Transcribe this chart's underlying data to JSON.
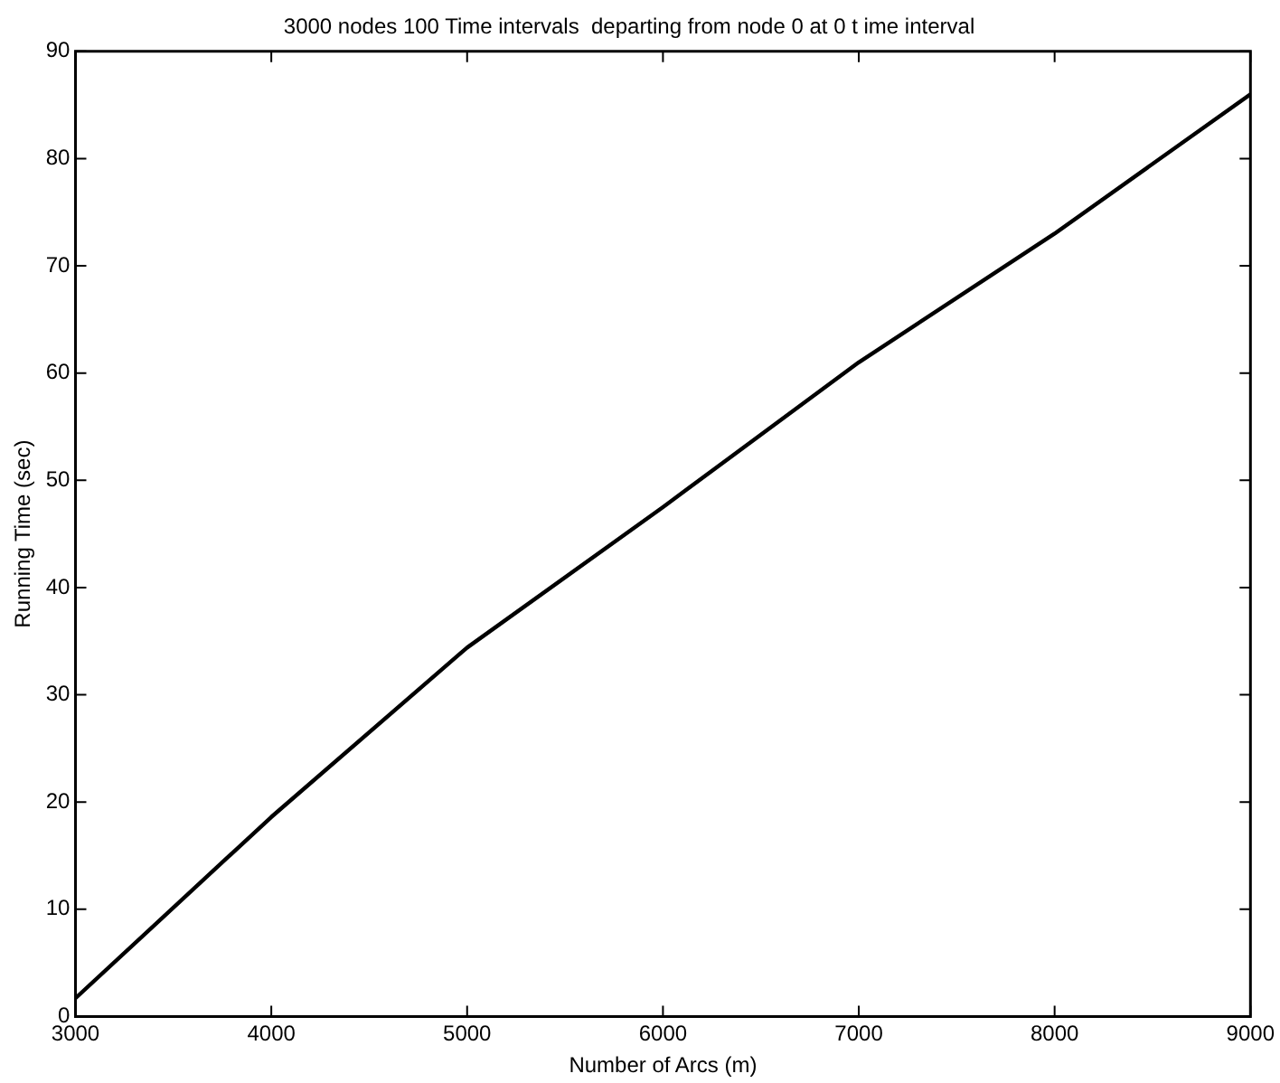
{
  "chart_data": {
    "type": "line",
    "title": "3000 nodes 100 Time intervals  departing from node 0 at 0 t ime interval",
    "xlabel": "Number of Arcs (m)",
    "ylabel": "Running Time (sec)",
    "x": [
      3000,
      4000,
      5000,
      6000,
      7000,
      8000,
      9000
    ],
    "series": [
      {
        "color": "#000000",
        "values": [
          1.7,
          18.6,
          34.4,
          47.5,
          61,
          73,
          86
        ]
      }
    ],
    "xlim": [
      3000,
      9000
    ],
    "xticks": [
      3000,
      4000,
      5000,
      6000,
      7000,
      8000,
      9000
    ],
    "ylim": [
      0,
      90
    ],
    "yticks": [
      0,
      10,
      20,
      30,
      40,
      50,
      60,
      70,
      80,
      90
    ],
    "grid": false,
    "legend": false,
    "marker": "none",
    "line_style": "solid"
  }
}
